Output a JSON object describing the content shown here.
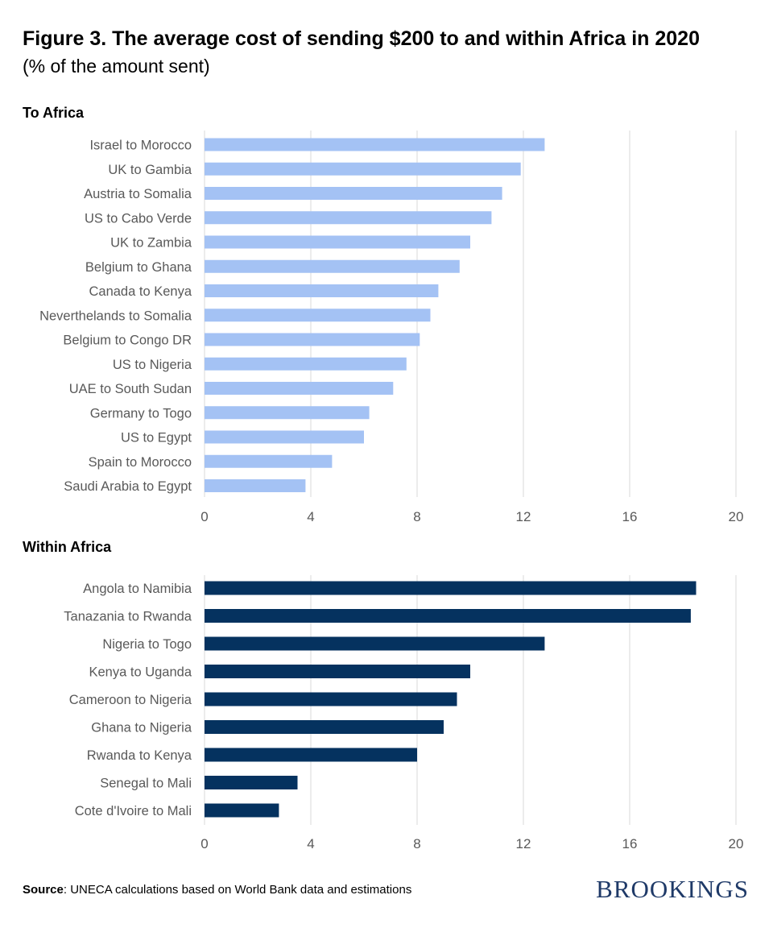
{
  "header": {
    "title": "Figure 3. The average cost of sending $200 to and within Africa in 2020",
    "subtitle": "(% of the amount sent)"
  },
  "colors": {
    "to_africa_bar": "#a4c2f4",
    "within_africa_bar": "#05325f",
    "grid": "#d9d9d9",
    "axis_text": "#595959",
    "brand": "#1f3a68"
  },
  "chart_data": [
    {
      "type": "bar",
      "orientation": "horizontal",
      "title": "To Africa",
      "categories": [
        "Israel to Morocco",
        "UK to Gambia",
        "Austria to Somalia",
        "US  to Cabo Verde",
        "UK to Zambia",
        "Belgium  to Ghana",
        "Canada to Kenya",
        "Neverthelands to Somalia",
        "Belgium to Congo DR",
        "US to Nigeria",
        "UAE to South Sudan",
        "Germany to Togo",
        "US to Egypt",
        "Spain to Morocco",
        "Saudi Arabia to Egypt"
      ],
      "values": [
        12.8,
        11.9,
        11.2,
        10.8,
        10.0,
        9.6,
        8.8,
        8.5,
        8.1,
        7.6,
        7.1,
        6.2,
        6.0,
        4.8,
        3.8
      ],
      "xlim": [
        0,
        20
      ],
      "xticks": [
        0,
        4,
        8,
        12,
        16,
        20
      ],
      "grid": "vertical"
    },
    {
      "type": "bar",
      "orientation": "horizontal",
      "title": "Within Africa",
      "categories": [
        "Angola to Namibia",
        "Tanazania to Rwanda",
        "Nigeria to Togo",
        "Kenya to Uganda",
        "Cameroon to Nigeria",
        "Ghana to Nigeria",
        "Rwanda to Kenya",
        "Senegal to Mali",
        "Cote d'Ivoire to Mali"
      ],
      "values": [
        18.5,
        18.3,
        12.8,
        10.0,
        9.5,
        9.0,
        8.0,
        3.5,
        2.8
      ],
      "xlim": [
        0,
        20
      ],
      "xticks": [
        0,
        4,
        8,
        12,
        16,
        20
      ],
      "grid": "vertical"
    }
  ],
  "footer": {
    "source_label": "Source",
    "source_text": ": UNECA calculations based on World Bank data and estimations",
    "brand": "BROOKINGS"
  }
}
